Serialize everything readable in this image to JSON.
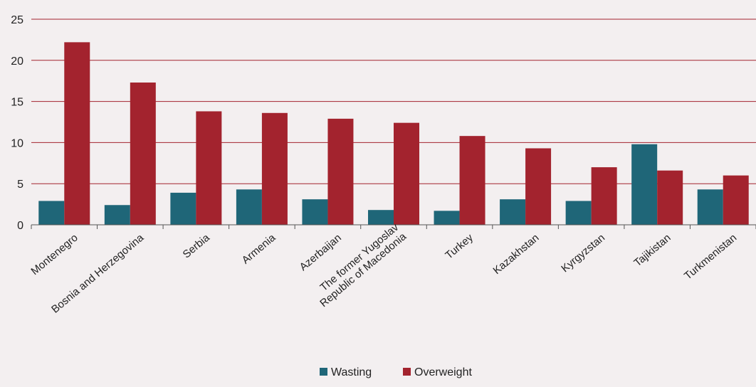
{
  "chart_data": {
    "type": "bar",
    "title": "",
    "xlabel": "",
    "ylabel": "",
    "ylim": [
      0,
      25
    ],
    "yticks": [
      0,
      5,
      10,
      15,
      20,
      25
    ],
    "grid": true,
    "legend_position": "bottom-center",
    "categories": [
      [
        "Montenegro"
      ],
      [
        "Bosnia and Herzegovina"
      ],
      [
        "Serbia"
      ],
      [
        "Armenia"
      ],
      [
        "Azerbaijan"
      ],
      [
        "The former Yugoslav",
        "Republic of Macedonia"
      ],
      [
        "Turkey"
      ],
      [
        "Kazakhstan"
      ],
      [
        "Kyrgyzstan"
      ],
      [
        "Tajikistan"
      ],
      [
        "Turkmenistan"
      ]
    ],
    "series": [
      {
        "name": "Wasting",
        "color": "#1f6678",
        "values": [
          2.9,
          2.4,
          3.9,
          4.3,
          3.1,
          1.8,
          1.7,
          3.1,
          2.9,
          9.8,
          4.3
        ]
      },
      {
        "name": "Overweight",
        "color": "#a3232e",
        "values": [
          22.2,
          17.3,
          13.8,
          13.6,
          12.9,
          12.4,
          10.8,
          9.3,
          7.0,
          6.6,
          6.0
        ]
      }
    ]
  },
  "colors": {
    "gridline": "#a3232e",
    "axis": "#555555",
    "background": "#f3eff0"
  }
}
